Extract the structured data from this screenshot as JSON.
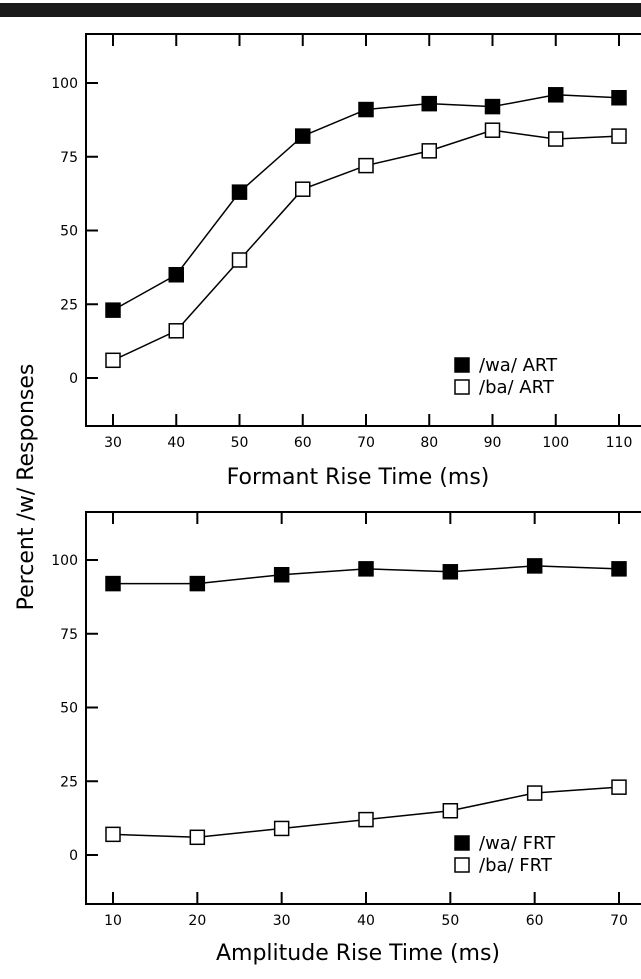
{
  "chart_data": {
    "ylabel": "Percent /w/ Responses",
    "panels": [
      {
        "type": "line",
        "xlabel": "Formant Rise Time (ms)",
        "x": [
          30,
          40,
          50,
          60,
          70,
          80,
          90,
          100,
          110
        ],
        "x_ticks": [
          "30",
          "40",
          "50",
          "60",
          "70",
          "80",
          "90",
          "100",
          "110"
        ],
        "ylim": [
          -15,
          115
        ],
        "y_ticks": [
          "0",
          "25",
          "50",
          "75",
          "100"
        ],
        "legend_position": "bottom-right",
        "series": [
          {
            "name": "/wa/ ART",
            "marker": "filled-square",
            "values": [
              23,
              35,
              63,
              82,
              91,
              93,
              92,
              96,
              95
            ]
          },
          {
            "name": "/ba/ ART",
            "marker": "open-square",
            "values": [
              6,
              16,
              40,
              64,
              72,
              77,
              84,
              81,
              82
            ]
          }
        ]
      },
      {
        "type": "line",
        "xlabel": "Amplitude Rise Time (ms)",
        "x": [
          10,
          20,
          30,
          40,
          50,
          60,
          70
        ],
        "x_ticks": [
          "10",
          "20",
          "30",
          "40",
          "50",
          "60",
          "70"
        ],
        "ylim": [
          -15,
          115
        ],
        "y_ticks": [
          "0",
          "25",
          "50",
          "75",
          "100"
        ],
        "legend_position": "bottom-right",
        "series": [
          {
            "name": "/wa/ FRT",
            "marker": "filled-square",
            "values": [
              92,
              92,
              95,
              97,
              96,
              98,
              97
            ]
          },
          {
            "name": "/ba/ FRT",
            "marker": "open-square",
            "values": [
              7,
              6,
              9,
              12,
              15,
              21,
              23
            ]
          }
        ]
      }
    ]
  }
}
